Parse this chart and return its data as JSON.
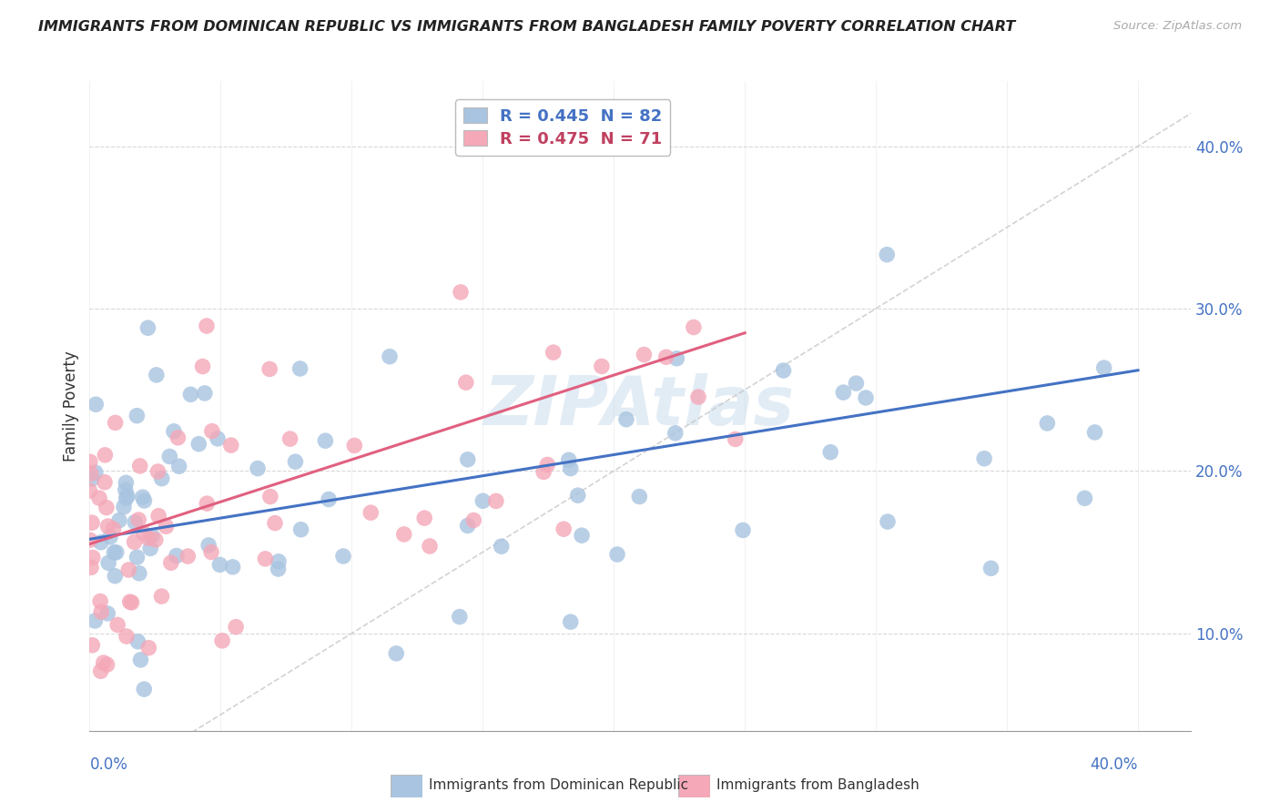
{
  "title": "IMMIGRANTS FROM DOMINICAN REPUBLIC VS IMMIGRANTS FROM BANGLADESH FAMILY POVERTY CORRELATION CHART",
  "source": "Source: ZipAtlas.com",
  "ylabel": "Family Poverty",
  "xlim": [
    0.0,
    0.42
  ],
  "ylim": [
    0.04,
    0.44
  ],
  "xlim_display": [
    0.0,
    0.4
  ],
  "R_blue": 0.445,
  "N_blue": 82,
  "R_pink": 0.475,
  "N_pink": 71,
  "legend_label_blue": "Immigrants from Dominican Republic",
  "legend_label_pink": "Immigrants from Bangladesh",
  "color_blue": "#a8c4e0",
  "color_pink": "#f4a8b8",
  "trendline_blue": "#4472c4",
  "trendline_pink": "#e06080",
  "trendline_dashed_color": "#c8c8c8",
  "grid_color": "#d8d8d8",
  "ytick_vals": [
    0.1,
    0.2,
    0.3,
    0.4
  ],
  "ytick_labels": [
    "10.0%",
    "20.0%",
    "30.0%",
    "40.0%"
  ],
  "blue_intercept": 0.158,
  "blue_slope": 0.26,
  "pink_intercept": 0.155,
  "pink_slope": 0.52
}
